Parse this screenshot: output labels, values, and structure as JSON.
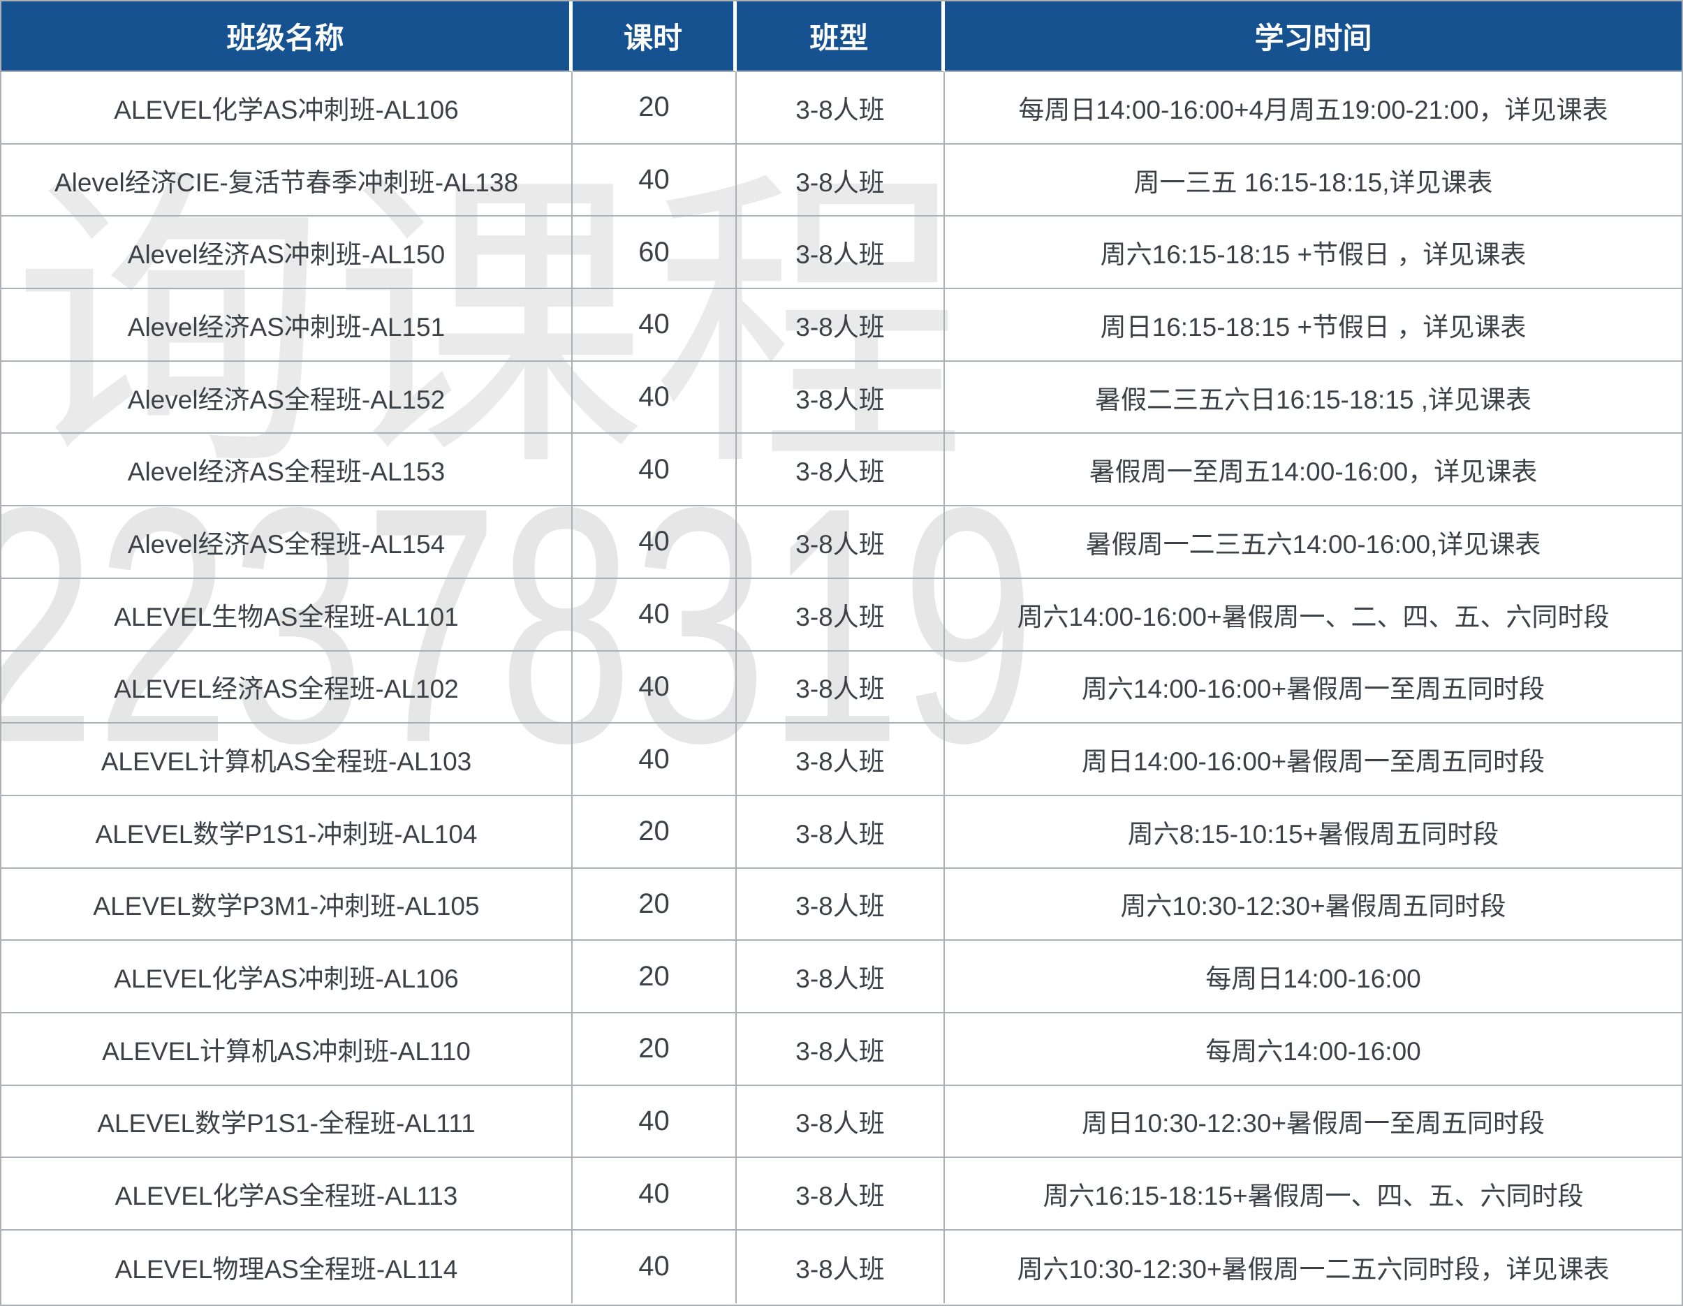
{
  "table": {
    "columns": [
      "班级名称",
      "课时",
      "班型",
      "学习时间"
    ],
    "rows": [
      {
        "name": "ALEVEL化学AS冲刺班-AL106",
        "hours": "20",
        "type": "3-8人班",
        "time": "每周日14:00-16:00+4月周五19:00-21:00，详见课表"
      },
      {
        "name": "Alevel经济CIE-复活节春季冲刺班-AL138",
        "hours": "40",
        "type": "3-8人班",
        "time": "周一三五 16:15-18:15,详见课表"
      },
      {
        "name": "Alevel经济AS冲刺班-AL150",
        "hours": "60",
        "type": "3-8人班",
        "time": "周六16:15-18:15 +节假日 ，详见课表"
      },
      {
        "name": "Alevel经济AS冲刺班-AL151",
        "hours": "40",
        "type": "3-8人班",
        "time": "周日16:15-18:15 +节假日 ，详见课表"
      },
      {
        "name": "Alevel经济AS全程班-AL152",
        "hours": "40",
        "type": "3-8人班",
        "time": "暑假二三五六日16:15-18:15 ,详见课表"
      },
      {
        "name": "Alevel经济AS全程班-AL153",
        "hours": "40",
        "type": "3-8人班",
        "time": "暑假周一至周五14:00-16:00，详见课表"
      },
      {
        "name": "Alevel经济AS全程班-AL154",
        "hours": "40",
        "type": "3-8人班",
        "time": "暑假周一二三五六14:00-16:00,详见课表"
      },
      {
        "name": "ALEVEL生物AS全程班-AL101",
        "hours": "40",
        "type": "3-8人班",
        "time": "周六14:00-16:00+暑假周一、二、四、五、六同时段"
      },
      {
        "name": "ALEVEL经济AS全程班-AL102",
        "hours": "40",
        "type": "3-8人班",
        "time": "周六14:00-16:00+暑假周一至周五同时段"
      },
      {
        "name": "ALEVEL计算机AS全程班-AL103",
        "hours": "40",
        "type": "3-8人班",
        "time": "周日14:00-16:00+暑假周一至周五同时段"
      },
      {
        "name": "ALEVEL数学P1S1-冲刺班-AL104",
        "hours": "20",
        "type": "3-8人班",
        "time": "周六8:15-10:15+暑假周五同时段"
      },
      {
        "name": "ALEVEL数学P3M1-冲刺班-AL105",
        "hours": "20",
        "type": "3-8人班",
        "time": "周六10:30-12:30+暑假周五同时段"
      },
      {
        "name": "ALEVEL化学AS冲刺班-AL106",
        "hours": "20",
        "type": "3-8人班",
        "time": "每周日14:00-16:00"
      },
      {
        "name": "ALEVEL计算机AS冲刺班-AL110",
        "hours": "20",
        "type": "3-8人班",
        "time": "每周六14:00-16:00"
      },
      {
        "name": "ALEVEL数学P1S1-全程班-AL111",
        "hours": "40",
        "type": "3-8人班",
        "time": "周日10:30-12:30+暑假周一至周五同时段"
      },
      {
        "name": "ALEVEL化学AS全程班-AL113",
        "hours": "40",
        "type": "3-8人班",
        "time": "周六16:15-18:15+暑假周一、四、五、六同时段"
      },
      {
        "name": "ALEVEL物理AS全程班-AL114",
        "hours": "40",
        "type": "3-8人班",
        "time": "周六10:30-12:30+暑假周一二五六同时段，详见课表"
      }
    ]
  },
  "watermark": {
    "text_cn": "询课程",
    "digits": "22378319"
  },
  "colors": {
    "header_bg": "#16528F",
    "header_text": "#FFFFFF",
    "body_text": "#3C4148",
    "border": "#ABB0B6",
    "watermark_cn": "#EAEAEA",
    "watermark_digits": "#E6E6E6"
  }
}
